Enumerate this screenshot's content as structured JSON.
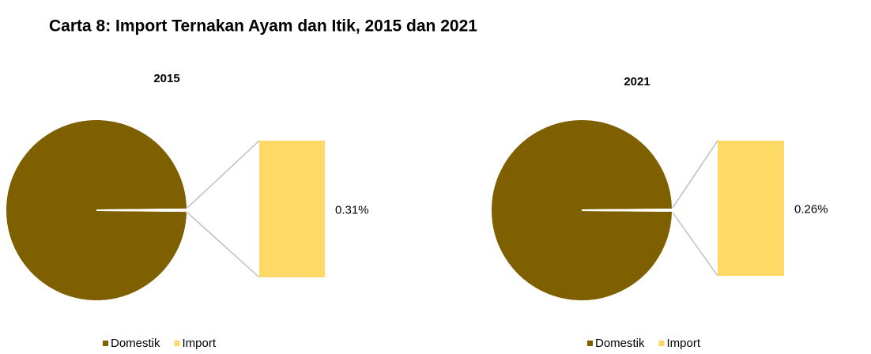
{
  "title": "Carta 8: Import Ternakan Ayam dan Itik, 2015 dan 2021",
  "chart_data": [
    {
      "type": "pie-of-bar",
      "title": "2015",
      "categories": [
        "Domestik",
        "Import"
      ],
      "values": [
        99.69,
        0.31
      ],
      "value_labels": [
        null,
        "0.31%"
      ],
      "colors": [
        "#7f6000",
        "#ffd966"
      ],
      "legend": "bottom"
    },
    {
      "type": "pie-of-bar",
      "title": "2021",
      "categories": [
        "Domestik",
        "Import"
      ],
      "values": [
        99.74,
        0.26
      ],
      "value_labels": [
        null,
        "0.26%"
      ],
      "colors": [
        "#7f6000",
        "#ffd966"
      ],
      "legend": "bottom"
    }
  ]
}
